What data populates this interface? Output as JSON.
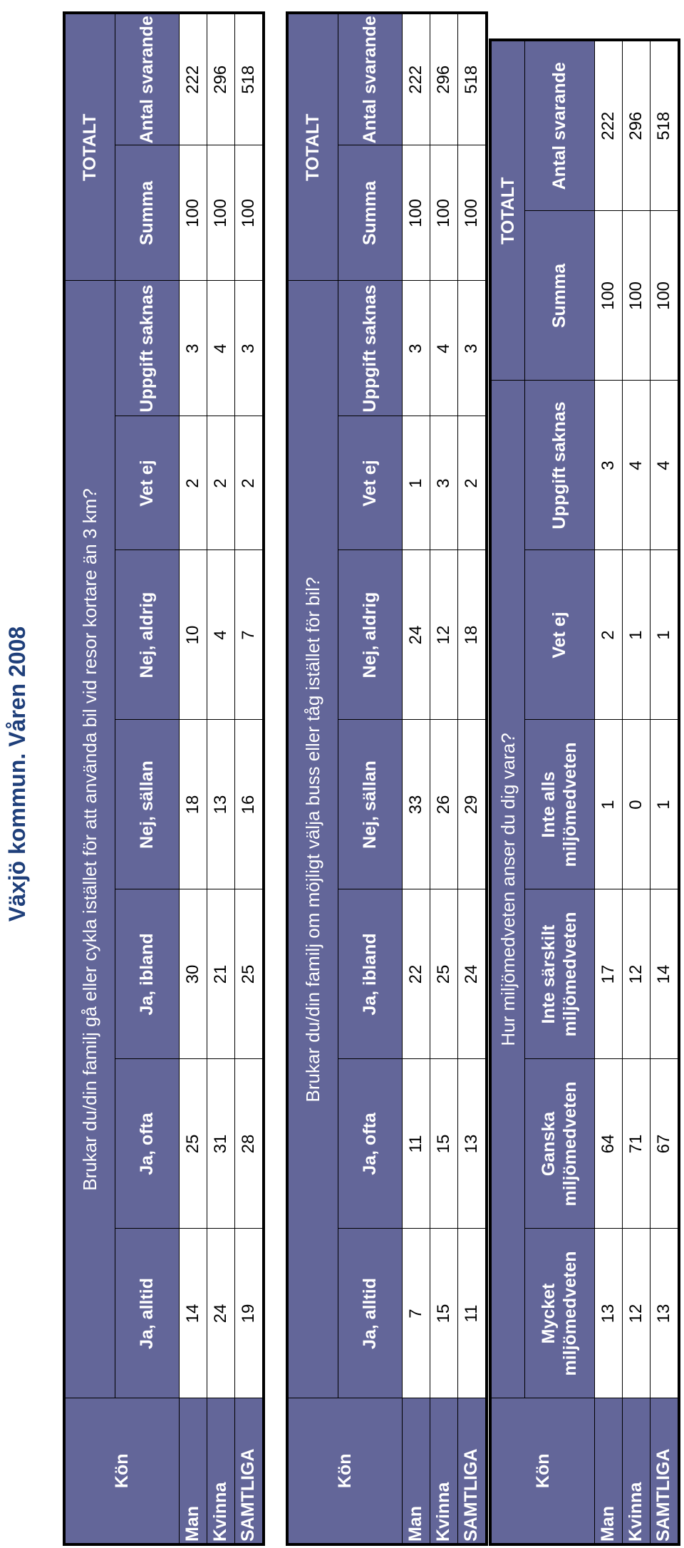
{
  "title": "Växjö kommun. Våren 2008",
  "tables": [
    {
      "row_header": "Kön",
      "question": "Brukar du/din familj gå eller cykla istället för att använda bil vid resor kortare än 3 km?",
      "total_header": "TOTALT",
      "columns": [
        "Ja, alltid",
        "Ja, ofta",
        "Ja, ibland",
        "Nej, sällan",
        "Nej, aldrig",
        "Vet ej",
        "Uppgift saknas",
        "Summa",
        "Antal svarande"
      ],
      "rows": [
        {
          "label": "Man",
          "values": [
            "14",
            "25",
            "30",
            "18",
            "10",
            "2",
            "3",
            "100",
            "222"
          ]
        },
        {
          "label": "Kvinna",
          "values": [
            "24",
            "31",
            "21",
            "13",
            "4",
            "2",
            "4",
            "100",
            "296"
          ]
        },
        {
          "label": "SAMTLIGA",
          "values": [
            "19",
            "28",
            "25",
            "16",
            "7",
            "2",
            "3",
            "100",
            "518"
          ]
        }
      ]
    },
    {
      "row_header": "Kön",
      "question": "Brukar du/din familj om möjligt välja buss eller tåg istället för bil?",
      "total_header": "TOTALT",
      "columns": [
        "Ja, alltid",
        "Ja, ofta",
        "Ja, ibland",
        "Nej, sällan",
        "Nej, aldrig",
        "Vet ej",
        "Uppgift saknas",
        "Summa",
        "Antal svarande"
      ],
      "rows": [
        {
          "label": "Man",
          "values": [
            "7",
            "11",
            "22",
            "33",
            "24",
            "1",
            "3",
            "100",
            "222"
          ]
        },
        {
          "label": "Kvinna",
          "values": [
            "15",
            "15",
            "25",
            "26",
            "12",
            "3",
            "4",
            "100",
            "296"
          ]
        },
        {
          "label": "SAMTLIGA",
          "values": [
            "11",
            "13",
            "24",
            "29",
            "18",
            "2",
            "3",
            "100",
            "518"
          ]
        }
      ]
    },
    {
      "row_header": "Kön",
      "question": "Hur miljömedveten anser du dig vara?",
      "total_header": "TOTALT",
      "columns": [
        "Mycket miljömedveten",
        "Ganska miljömedveten",
        "Inte särskilt miljömedveten",
        "Inte alls miljömedveten",
        "Vet ej",
        "Uppgift saknas",
        "Summa",
        "Antal svarande"
      ],
      "rows": [
        {
          "label": "Man",
          "values": [
            "13",
            "64",
            "17",
            "1",
            "2",
            "3",
            "100",
            "222"
          ]
        },
        {
          "label": "Kvinna",
          "values": [
            "12",
            "71",
            "12",
            "0",
            "1",
            "4",
            "100",
            "296"
          ]
        },
        {
          "label": "SAMTLIGA",
          "values": [
            "13",
            "67",
            "14",
            "1",
            "1",
            "4",
            "100",
            "518"
          ]
        }
      ]
    }
  ]
}
